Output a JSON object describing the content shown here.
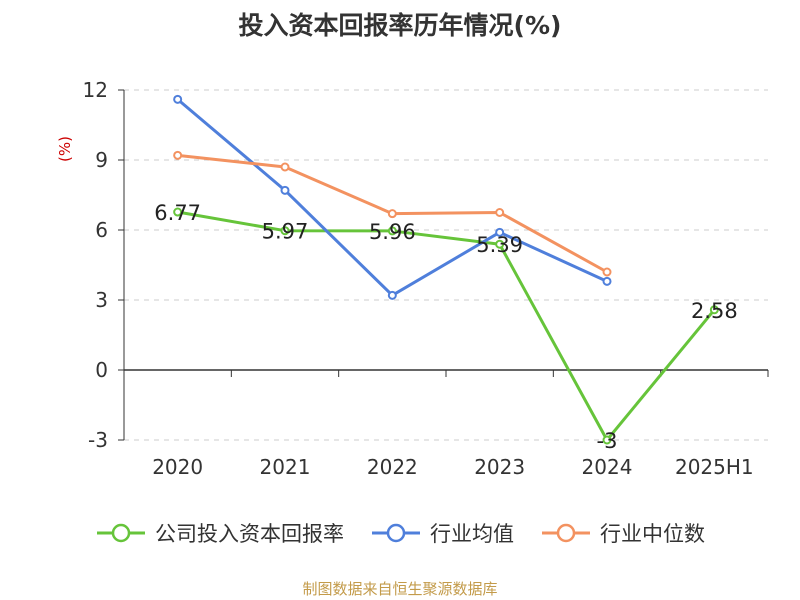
{
  "title": "投入资本回报率历年情况(%)",
  "unit_label": "(%)",
  "source": "制图数据来自恒生聚源数据库",
  "chart_data": {
    "type": "line",
    "categories": [
      "2020",
      "2021",
      "2022",
      "2023",
      "2024",
      "2025H1"
    ],
    "ylim": [
      -3,
      12
    ],
    "yticks": [
      "12",
      "9",
      "6",
      "3",
      "0",
      "-3"
    ],
    "ytick_values": [
      12,
      9,
      6,
      3,
      0,
      -3
    ],
    "grid": true,
    "legend_position": "bottom",
    "series": [
      {
        "name": "公司投入资本回报率",
        "color": "#66c43a",
        "values": [
          6.77,
          5.97,
          5.96,
          5.39,
          -3,
          2.58
        ],
        "labels": [
          "6.77",
          "5.97",
          "5.96",
          "5.39",
          "-3",
          "2.58"
        ]
      },
      {
        "name": "行业均值",
        "color": "#4f7fdb",
        "values": [
          11.6,
          7.7,
          3.2,
          5.9,
          3.8,
          null
        ]
      },
      {
        "name": "行业中位数",
        "color": "#f39260",
        "values": [
          9.2,
          8.7,
          6.7,
          6.75,
          4.2,
          null
        ]
      }
    ]
  }
}
